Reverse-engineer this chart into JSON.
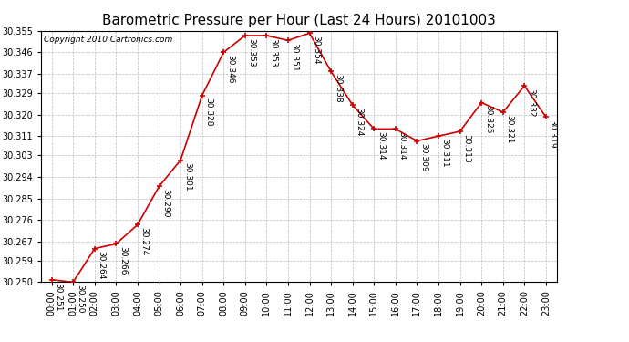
{
  "title": "Barometric Pressure per Hour (Last 24 Hours) 20101003",
  "copyright": "Copyright 2010 Cartronics.com",
  "hours": [
    "00:00",
    "01:00",
    "02:00",
    "03:00",
    "04:00",
    "05:00",
    "06:00",
    "07:00",
    "08:00",
    "09:00",
    "10:00",
    "11:00",
    "12:00",
    "13:00",
    "14:00",
    "15:00",
    "16:00",
    "17:00",
    "18:00",
    "19:00",
    "20:00",
    "21:00",
    "22:00",
    "23:00"
  ],
  "values": [
    30.251,
    30.25,
    30.264,
    30.266,
    30.274,
    30.29,
    30.301,
    30.328,
    30.346,
    30.353,
    30.353,
    30.351,
    30.354,
    30.338,
    30.324,
    30.314,
    30.314,
    30.309,
    30.311,
    30.313,
    30.325,
    30.321,
    30.332,
    30.319
  ],
  "line_color": "#cc0000",
  "marker_color": "#cc0000",
  "bg_color": "#ffffff",
  "grid_color": "#bbbbbb",
  "ylim_min": 30.25,
  "ylim_max": 30.355,
  "yticks": [
    30.25,
    30.259,
    30.267,
    30.276,
    30.285,
    30.294,
    30.303,
    30.311,
    30.32,
    30.329,
    30.337,
    30.346,
    30.355
  ],
  "title_fontsize": 11,
  "copyright_fontsize": 6.5,
  "label_fontsize": 6.5,
  "tick_fontsize": 7
}
